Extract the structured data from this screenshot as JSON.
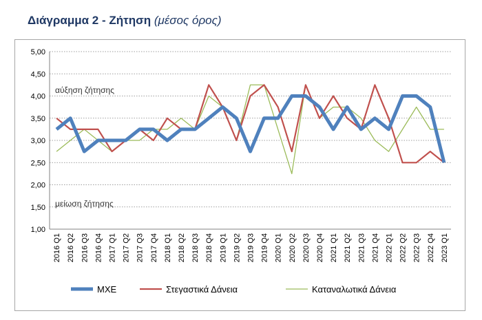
{
  "title": {
    "main": "Διάγραμμα 2 - Ζήτηση",
    "sub": "(μέσος όρος)"
  },
  "chart_data": {
    "type": "line",
    "ylim": [
      1.0,
      5.0
    ],
    "yticks": [
      "1,00",
      "1,50",
      "2,00",
      "2,50",
      "3,00",
      "3,50",
      "4,00",
      "4,50",
      "5,00"
    ],
    "grid": true,
    "legend_position": "bottom",
    "annotations": {
      "upper": "αύξηση ζήτησης",
      "lower": "μείωση ζήτησης"
    },
    "categories": [
      "2016 Q1",
      "2016 Q2",
      "2016 Q3",
      "2016 Q4",
      "2017 Q1",
      "2017 Q2",
      "2017 Q3",
      "2017 Q4",
      "2018 Q1",
      "2018 Q2",
      "2018 Q3",
      "2018 Q4",
      "2019 Q1",
      "2019 Q2",
      "2019 Q3",
      "2019 Q4",
      "2020 Q1",
      "2020 Q2",
      "2020 Q3",
      "2020 Q4",
      "2021 Q1",
      "2021 Q2",
      "2021 Q3",
      "2021 Q4",
      "2022 Q1",
      "2022 Q2",
      "2022 Q3",
      "2022 Q4",
      "2023 Q1"
    ],
    "series": [
      {
        "name": "ΜΧΕ",
        "color": "#4f81bd",
        "values": [
          3.25,
          3.5,
          2.75,
          3.0,
          3.0,
          3.0,
          3.25,
          3.25,
          3.0,
          3.25,
          3.25,
          3.5,
          3.75,
          3.5,
          2.75,
          3.5,
          3.5,
          4.0,
          4.0,
          3.75,
          3.25,
          3.75,
          3.25,
          3.5,
          3.25,
          4.0,
          4.0,
          3.75,
          2.5
        ]
      },
      {
        "name": "Στεγαστικά Δάνεια",
        "color": "#c0504d",
        "values": [
          3.5,
          3.25,
          3.25,
          3.25,
          2.75,
          3.0,
          3.25,
          3.0,
          3.5,
          3.25,
          3.25,
          4.25,
          3.75,
          3.0,
          4.0,
          4.25,
          3.75,
          2.75,
          4.25,
          3.5,
          4.0,
          3.5,
          3.25,
          4.25,
          3.5,
          2.5,
          2.5,
          2.75,
          2.5
        ]
      },
      {
        "name": "Καταναλωτικά Δάνεια",
        "color": "#9bbb59",
        "values": [
          2.75,
          3.0,
          3.25,
          3.0,
          2.75,
          3.0,
          3.0,
          3.25,
          3.25,
          3.5,
          3.25,
          4.0,
          3.75,
          3.0,
          4.25,
          4.25,
          3.25,
          2.25,
          4.25,
          3.5,
          3.75,
          3.75,
          3.5,
          3.0,
          2.75,
          3.25,
          3.75,
          3.25,
          3.25
        ]
      }
    ]
  }
}
